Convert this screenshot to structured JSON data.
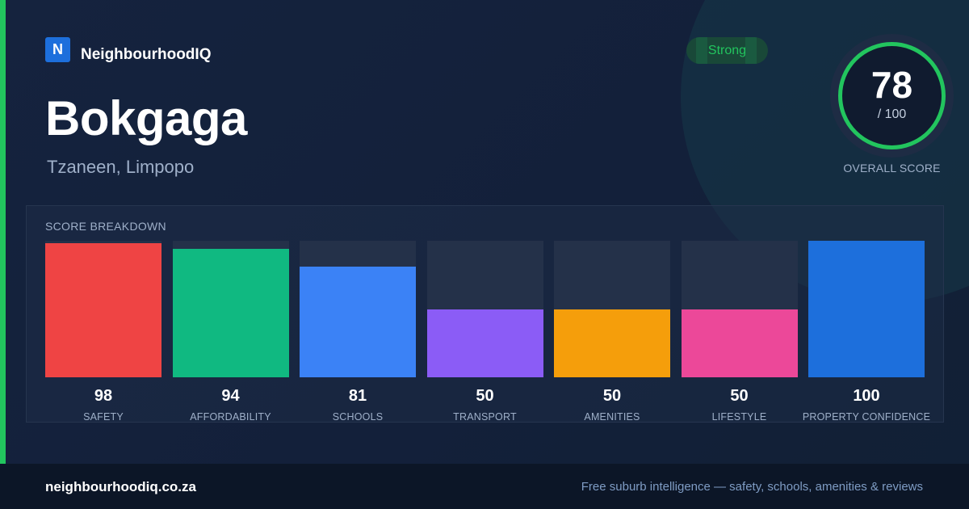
{
  "brand": {
    "logo_letter": "N",
    "name": "NeighbourhoodIQ"
  },
  "suburb": {
    "name": "Bokgaga",
    "location": "Tzaneen, Limpopo"
  },
  "rating": {
    "badge": "Strong",
    "score": "78",
    "max": "/ 100",
    "score_value": 78,
    "max_value": 100,
    "label": "OVERALL SCORE"
  },
  "breakdown": {
    "title": "SCORE BREAKDOWN",
    "max": 100,
    "items": [
      {
        "label": "SAFETY",
        "value": 98,
        "value_text": "98",
        "color": "#ef4444"
      },
      {
        "label": "AFFORDABILITY",
        "value": 94,
        "value_text": "94",
        "color": "#10b981"
      },
      {
        "label": "SCHOOLS",
        "value": 81,
        "value_text": "81",
        "color": "#3b82f6"
      },
      {
        "label": "TRANSPORT",
        "value": 50,
        "value_text": "50",
        "color": "#8b5cf6"
      },
      {
        "label": "AMENITIES",
        "value": 50,
        "value_text": "50",
        "color": "#f59e0b"
      },
      {
        "label": "LIFESTYLE",
        "value": 50,
        "value_text": "50",
        "color": "#ec4899"
      },
      {
        "label": "PROPERTY CONFIDENCE",
        "value": 100,
        "value_text": "100",
        "color": "#1d6fdc"
      }
    ]
  },
  "colors": {
    "accent": "#22c55e",
    "ring_track": "#1e2c44",
    "ring_inner": "#101b2f"
  },
  "footer": {
    "url": "neighbourhoodiq.co.za",
    "tagline": "Free suburb intelligence — safety, schools, amenities & reviews"
  }
}
